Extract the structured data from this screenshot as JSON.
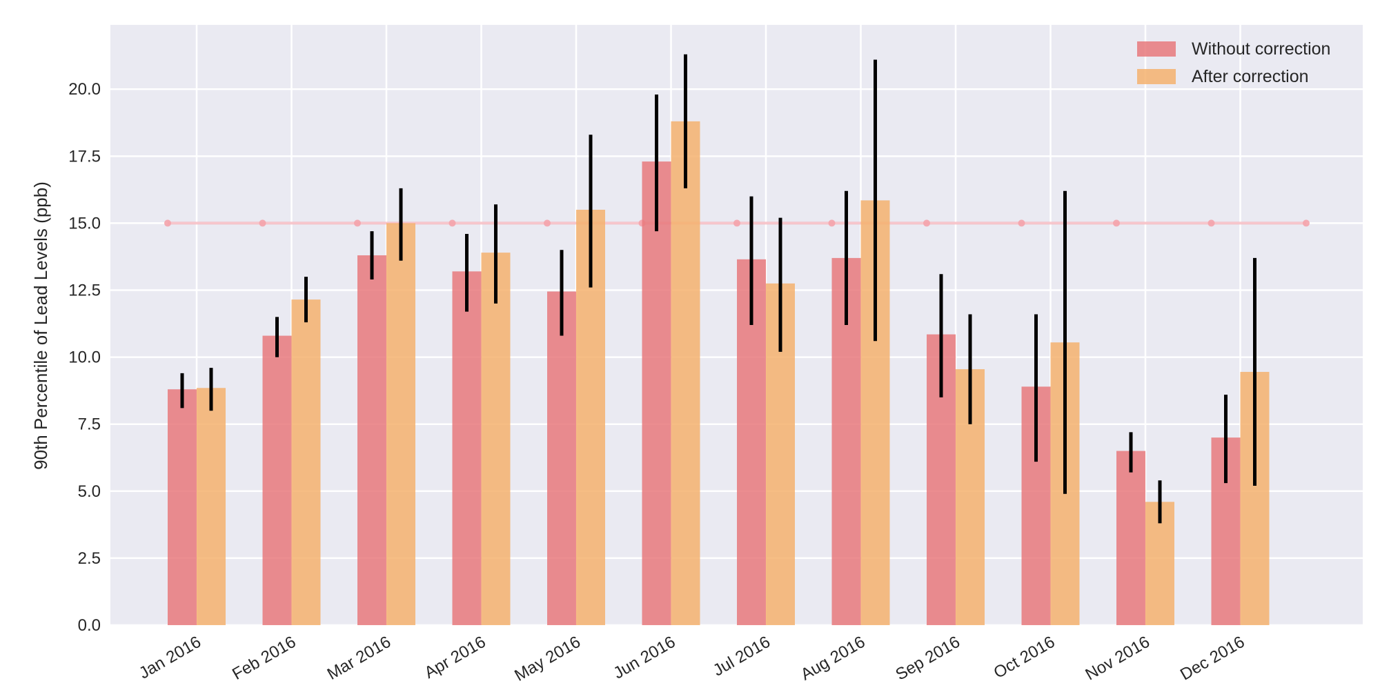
{
  "chart_data": {
    "type": "bar",
    "title": "",
    "xlabel": "",
    "ylabel": "90th Percentile of Lead Levels (ppb)",
    "ylim": [
      0,
      22.4
    ],
    "yticks": [
      "0.0",
      "2.5",
      "5.0",
      "7.5",
      "10.0",
      "12.5",
      "15.0",
      "17.5",
      "20.0"
    ],
    "categories": [
      "Jan 2016",
      "Feb 2016",
      "Mar 2016",
      "Apr 2016",
      "May 2016",
      "Jun 2016",
      "Jul 2016",
      "Aug 2016",
      "Sep 2016",
      "Oct 2016",
      "Nov 2016",
      "Dec 2016"
    ],
    "grid": true,
    "legend_position": "top-right",
    "series": [
      {
        "name": "Without correction",
        "color": "#e8797c",
        "values": [
          8.8,
          10.8,
          13.8,
          13.2,
          12.45,
          17.3,
          13.65,
          13.7,
          10.85,
          8.9,
          6.5,
          7.0
        ],
        "err_low": [
          8.1,
          10.0,
          12.9,
          11.7,
          10.8,
          14.7,
          11.2,
          11.2,
          8.5,
          6.1,
          5.7,
          5.3
        ],
        "err_high": [
          9.4,
          11.5,
          14.7,
          14.6,
          14.0,
          19.8,
          16.0,
          16.2,
          13.1,
          11.6,
          7.2,
          8.6
        ]
      },
      {
        "name": "After correction",
        "color": "#f5b16e",
        "values": [
          8.85,
          12.15,
          15.0,
          13.9,
          15.5,
          18.8,
          12.75,
          15.85,
          9.55,
          10.55,
          4.6,
          9.45
        ],
        "err_low": [
          8.0,
          11.3,
          13.6,
          12.0,
          12.6,
          16.3,
          10.2,
          10.6,
          7.5,
          4.9,
          3.8,
          5.2
        ],
        "err_high": [
          9.6,
          13.0,
          16.3,
          15.7,
          18.3,
          21.3,
          15.2,
          21.1,
          11.6,
          16.2,
          5.4,
          13.7
        ]
      }
    ],
    "reference_line": {
      "y": 15,
      "color": "#f4a3ab"
    },
    "colors": {
      "plot_bg": "#eaeaf2",
      "grid": "#ffffff",
      "errorbar": "#000000"
    }
  }
}
